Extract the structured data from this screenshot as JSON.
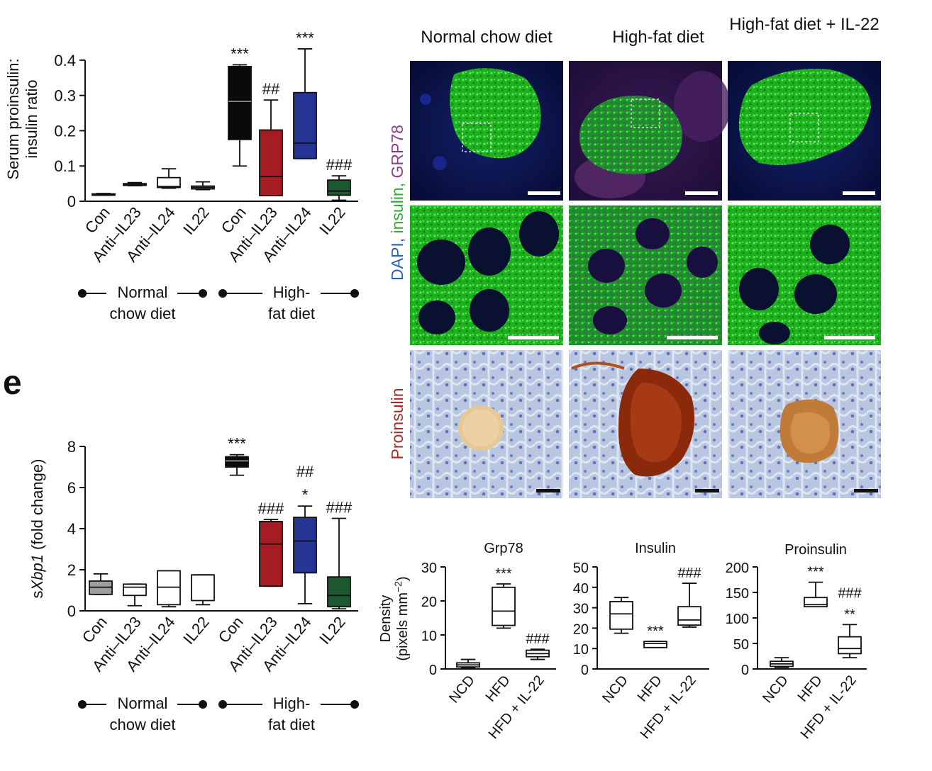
{
  "panel_label": "e",
  "colors": {
    "con_ncd": "#ffffff",
    "ncd_gray": "#9e9e9e",
    "hfd_con": "#0a0a0a",
    "anti_il23": "#a51d22",
    "anti_il24": "#263593",
    "il22_hfd": "#1d5a32",
    "dapi": "#2a5fb8",
    "insulin": "#3aa63a",
    "grp78": "#8f3b8f",
    "proinsulin": "#a52a2a"
  },
  "group_labels": {
    "normal": {
      "line1": "Normal",
      "line2": "chow diet"
    },
    "hfd": {
      "line1": "High-",
      "line2": "fat diet"
    }
  },
  "micro": {
    "columns": [
      "Normal chow diet",
      "High-fat diet",
      "High-fat diet + IL-22"
    ],
    "stain_top": {
      "dapi": "DAPI",
      "sep1": ", ",
      "insulin": "insulin",
      "sep2": ", ",
      "grp78": "GRP78"
    },
    "stain_bottom": "Proinsulin"
  },
  "chart_data": [
    {
      "id": "proinsulin_ratio",
      "type": "box",
      "ylabel_line1": "Serum proinsulin:",
      "ylabel_line2": "insulin ratio",
      "ylim": [
        0,
        0.45
      ],
      "yticks": [
        0,
        0.1,
        0.2,
        0.3,
        0.4
      ],
      "ytick_labels": [
        "0",
        "0.1",
        "0.2",
        "0.3",
        "0.4"
      ],
      "categories": [
        "Con",
        "Anti–IL23",
        "Anti–IL24",
        "IL22",
        "Con",
        "Anti–IL23",
        "Anti–IL24",
        "IL22"
      ],
      "boxes": [
        {
          "min": 0.017,
          "q1": 0.018,
          "median": 0.019,
          "q3": 0.021,
          "max": 0.022,
          "color": "#ffffff",
          "sig": ""
        },
        {
          "min": 0.044,
          "q1": 0.045,
          "median": 0.047,
          "q3": 0.05,
          "max": 0.053,
          "color": "#ffffff",
          "sig": ""
        },
        {
          "min": 0.037,
          "q1": 0.039,
          "median": 0.042,
          "q3": 0.067,
          "max": 0.092,
          "color": "#ffffff",
          "sig": ""
        },
        {
          "min": 0.033,
          "q1": 0.035,
          "median": 0.039,
          "q3": 0.043,
          "max": 0.055,
          "color": "#ffffff",
          "sig": ""
        },
        {
          "min": 0.1,
          "q1": 0.175,
          "median": 0.283,
          "q3": 0.382,
          "max": 0.387,
          "color": "#0a0a0a",
          "sig": "***"
        },
        {
          "min": 0.016,
          "q1": 0.016,
          "median": 0.07,
          "q3": 0.202,
          "max": 0.287,
          "color": "#a51d22",
          "sig": "##"
        },
        {
          "min": 0.121,
          "q1": 0.121,
          "median": 0.165,
          "q3": 0.308,
          "max": 0.432,
          "color": "#263593",
          "sig": "***"
        },
        {
          "min": 0.003,
          "q1": 0.017,
          "median": 0.029,
          "q3": 0.06,
          "max": 0.072,
          "color": "#1d5a32",
          "sig": "###"
        }
      ]
    },
    {
      "id": "sxbp1",
      "type": "box",
      "ylabel_pre": "s",
      "ylabel_italic": "Xbp1",
      "ylabel_post": " (fold change)",
      "ylim": [
        0,
        8
      ],
      "yticks": [
        0,
        2,
        4,
        6,
        8
      ],
      "ytick_labels": [
        "0",
        "2",
        "4",
        "6",
        "8"
      ],
      "categories": [
        "Con",
        "Anti–IL23",
        "Anti–IL24",
        "IL22",
        "Con",
        "Anti–IL23",
        "Anti–IL24",
        "IL22"
      ],
      "boxes": [
        {
          "min": 0.8,
          "q1": 0.8,
          "median": 1.15,
          "q3": 1.45,
          "max": 1.8,
          "color": "#9e9e9e",
          "sig": ""
        },
        {
          "min": 0.25,
          "q1": 0.75,
          "median": 1.15,
          "q3": 1.3,
          "max": 1.3,
          "color": "#ffffff",
          "sig": ""
        },
        {
          "min": 0.2,
          "q1": 0.3,
          "median": 1.15,
          "q3": 1.95,
          "max": 1.95,
          "color": "#ffffff",
          "sig": ""
        },
        {
          "min": 0.3,
          "q1": 0.5,
          "median": 1.75,
          "q3": 1.75,
          "max": 1.75,
          "color": "#ffffff",
          "sig": ""
        },
        {
          "min": 6.6,
          "q1": 7.0,
          "median": 7.3,
          "q3": 7.5,
          "max": 7.6,
          "color": "#0a0a0a",
          "sig": "***"
        },
        {
          "min": 1.2,
          "q1": 1.2,
          "median": 3.25,
          "q3": 4.35,
          "max": 4.45,
          "color": "#a51d22",
          "sig": "###"
        },
        {
          "min": 0.35,
          "q1": 1.85,
          "median": 3.4,
          "q3": 4.55,
          "max": 5.1,
          "color": "#263593",
          "sig": "*",
          "sig2": "##"
        },
        {
          "min": 0.1,
          "q1": 0.2,
          "median": 0.75,
          "q3": 1.65,
          "max": 4.5,
          "color": "#1d5a32",
          "sig": "###"
        }
      ]
    },
    {
      "id": "grp78_density",
      "type": "box",
      "title": "Grp78",
      "ylabel_line1": "Density",
      "ylabel_line2": "(pixels mm",
      "ylabel_sup": "−2",
      "ylabel_close": ")",
      "ylim": [
        0,
        30
      ],
      "yticks": [
        0,
        10,
        20,
        30
      ],
      "ytick_labels": [
        "0",
        "10",
        "20",
        "30"
      ],
      "categories": [
        "NCD",
        "HFD",
        "HFD + IL-22"
      ],
      "boxes": [
        {
          "min": 0.3,
          "q1": 0.6,
          "median": 1.2,
          "q3": 1.8,
          "max": 2.8,
          "color": "#ffffff",
          "sig": ""
        },
        {
          "min": 12.0,
          "q1": 12.8,
          "median": 17.0,
          "q3": 24.0,
          "max": 25.0,
          "color": "#ffffff",
          "sig": "***"
        },
        {
          "min": 2.8,
          "q1": 3.6,
          "median": 4.5,
          "q3": 5.5,
          "max": 5.8,
          "color": "#ffffff",
          "sig": "###"
        }
      ]
    },
    {
      "id": "insulin_density",
      "type": "box",
      "title": "Insulin",
      "ylim": [
        0,
        50
      ],
      "yticks": [
        0,
        10,
        20,
        30,
        40,
        50
      ],
      "ytick_labels": [
        "0",
        "10",
        "20",
        "30",
        "40",
        "50"
      ],
      "categories": [
        "NCD",
        "HFD",
        "HFD + IL-22"
      ],
      "boxes": [
        {
          "min": 17.5,
          "q1": 19.5,
          "median": 27.0,
          "q3": 33.0,
          "max": 35.0,
          "color": "#ffffff",
          "sig": ""
        },
        {
          "min": 10.5,
          "q1": 10.5,
          "median": 12.5,
          "q3": 13.5,
          "max": 13.5,
          "color": "#ffffff",
          "sig": "***"
        },
        {
          "min": 20.5,
          "q1": 21.5,
          "median": 24.0,
          "q3": 30.5,
          "max": 42.0,
          "color": "#ffffff",
          "sig": "###"
        }
      ]
    },
    {
      "id": "proinsulin_density",
      "type": "box",
      "title": "Proinsulin",
      "ylim": [
        0,
        200
      ],
      "yticks": [
        0,
        50,
        100,
        150,
        200
      ],
      "ytick_labels": [
        "0",
        "50",
        "100",
        "150",
        "200"
      ],
      "categories": [
        "NCD",
        "HFD",
        "HFD + IL-22"
      ],
      "boxes": [
        {
          "min": 3,
          "q1": 5,
          "median": 10,
          "q3": 15,
          "max": 22,
          "color": "#ffffff",
          "sig": ""
        },
        {
          "min": 122,
          "q1": 122,
          "median": 126,
          "q3": 140,
          "max": 170,
          "color": "#ffffff",
          "sig": "***"
        },
        {
          "min": 22,
          "q1": 30,
          "median": 40,
          "q3": 63,
          "max": 87,
          "color": "#ffffff",
          "sig": "**",
          "sig2": "###"
        }
      ]
    }
  ]
}
